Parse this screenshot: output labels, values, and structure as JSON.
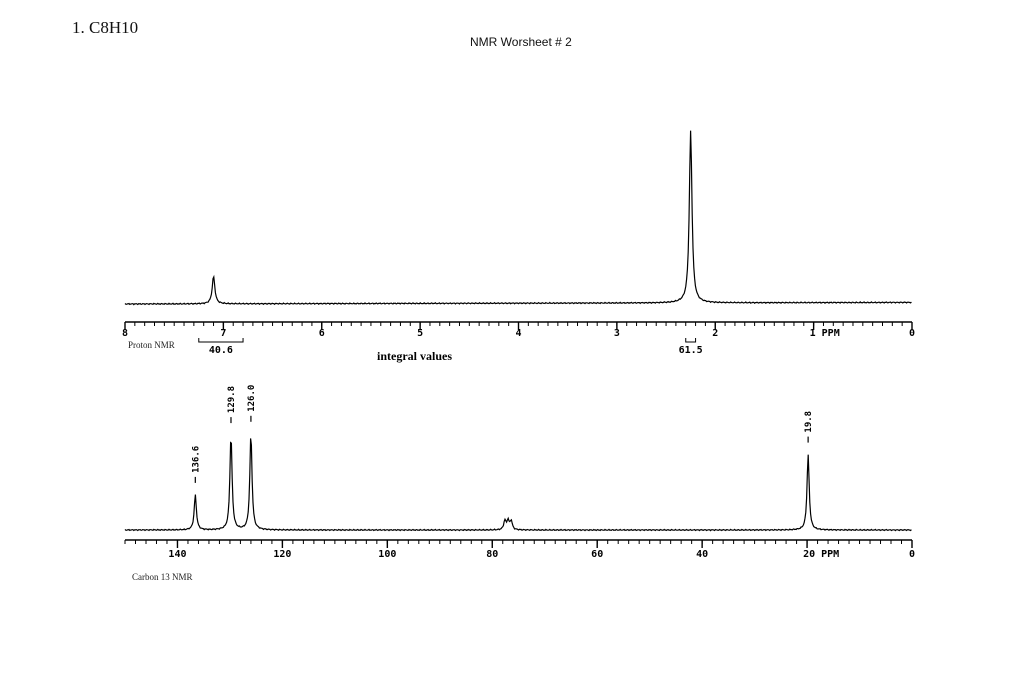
{
  "header": {
    "problem": "1.  C8H10",
    "title": "NMR Worsheet # 2"
  },
  "chart_data": [
    {
      "type": "line",
      "label": "Proton NMR",
      "xlim": [
        8,
        0
      ],
      "x_ticks": [
        "8",
        "7",
        "6",
        "5",
        "4",
        "3",
        "2",
        "1 PPM",
        "0"
      ],
      "peaks": [
        {
          "ppm": 7.1,
          "relative_height": 0.16
        },
        {
          "ppm": 2.25,
          "relative_height": 1.0
        }
      ],
      "integrals": [
        {
          "from": 7.25,
          "to": 6.8,
          "value": "40.6"
        },
        {
          "from": 2.3,
          "to": 2.2,
          "value": "61.5"
        }
      ],
      "annotation": "integral values"
    },
    {
      "type": "line",
      "label": "Carbon 13 NMR",
      "xlim": [
        150,
        0
      ],
      "x_ticks": [
        "140",
        "120",
        "100",
        "80",
        "60",
        "40",
        "20 PPM",
        "0"
      ],
      "peaks": [
        {
          "ppm": 136.6,
          "relative_height": 0.27,
          "label": "136.6"
        },
        {
          "ppm": 129.8,
          "relative_height": 0.73,
          "label": "129.8"
        },
        {
          "ppm": 126.0,
          "relative_height": 0.74,
          "label": "126.0"
        },
        {
          "ppm": 77.6,
          "relative_height": 0.07
        },
        {
          "ppm": 77.0,
          "relative_height": 0.07
        },
        {
          "ppm": 76.4,
          "relative_height": 0.07
        },
        {
          "ppm": 19.8,
          "relative_height": 0.58,
          "label": "19.8"
        }
      ]
    }
  ]
}
